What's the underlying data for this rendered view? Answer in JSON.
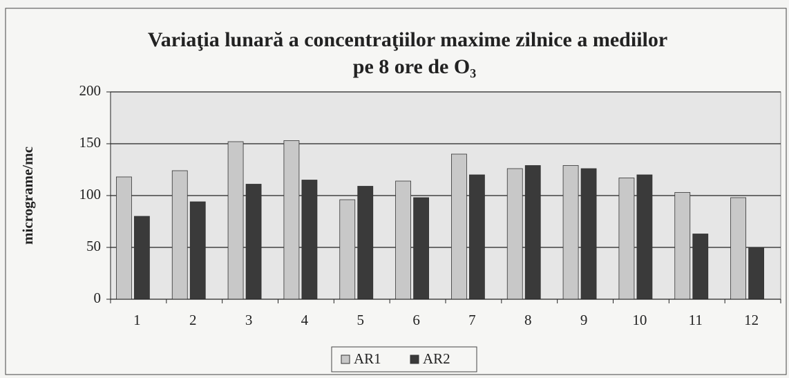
{
  "chart_data": {
    "type": "bar",
    "title": [
      "Variaţia lunară a concentraţiilor maxime zilnice a mediilor",
      "pe 8 ore de O₃"
    ],
    "y_label": "micrograme/mc",
    "categories": [
      "1",
      "2",
      "3",
      "4",
      "5",
      "6",
      "7",
      "8",
      "9",
      "10",
      "11",
      "12"
    ],
    "series": [
      {
        "name": "AR1",
        "color": "#c8c8c8",
        "values": [
          118,
          124,
          152,
          153,
          96,
          114,
          140,
          126,
          129,
          117,
          103,
          98
        ]
      },
      {
        "name": "AR2",
        "color": "#3a3a3a",
        "values": [
          80,
          94,
          111,
          115,
          109,
          98,
          120,
          129,
          126,
          120,
          63,
          50
        ]
      }
    ],
    "ylim": [
      0,
      200
    ],
    "yticks": [
      0,
      50,
      100,
      150,
      200
    ],
    "grid": true,
    "legend": "bottom"
  }
}
